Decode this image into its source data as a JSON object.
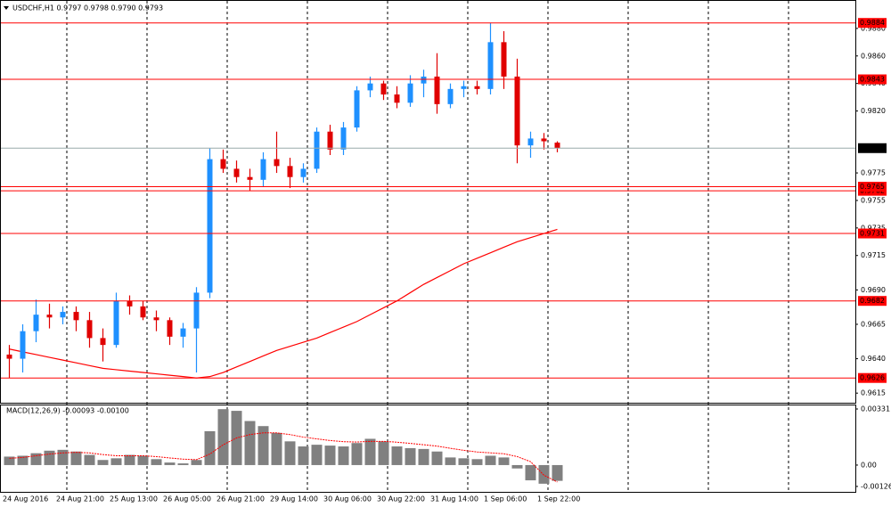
{
  "chart_data": [
    {
      "type": "candlestick",
      "title": "USDCHF,H1 0.9797 0.9798 0.9790 0.9793",
      "categories": [
        "24 Aug 2016",
        null,
        null,
        null,
        "24 Aug 21:00",
        null,
        null,
        null,
        "25 Aug 13:00",
        null,
        null,
        null,
        "26 Aug 05:00",
        null,
        null,
        null,
        "26 Aug 21:00",
        null,
        null,
        null,
        "29 Aug 14:00",
        null,
        null,
        null,
        "30 Aug 06:00",
        null,
        null,
        null,
        "30 Aug 22:00",
        null,
        null,
        null,
        "31 Aug 14:00",
        null,
        null,
        null,
        "1 Sep 06:00",
        null,
        null,
        null,
        "1 Sep 22:00",
        null
      ],
      "open": [
        0.9643,
        0.964,
        0.966,
        0.9672,
        0.967,
        0.9674,
        0.9668,
        0.9655,
        0.965,
        0.9682,
        0.9678,
        0.967,
        0.9668,
        0.9656,
        0.9662,
        0.9688,
        0.9785,
        0.9778,
        0.9772,
        0.977,
        0.9785,
        0.978,
        0.9772,
        0.9778,
        0.9805,
        0.9792,
        0.9808,
        0.9835,
        0.984,
        0.9832,
        0.9826,
        0.984,
        0.9845,
        0.9825,
        0.9836,
        0.9838,
        0.9836,
        0.987,
        0.9845,
        0.9795,
        0.98,
        0.9797
      ],
      "high": [
        0.965,
        0.9665,
        0.9683,
        0.968,
        0.9678,
        0.9678,
        0.9674,
        0.9662,
        0.9688,
        0.9686,
        0.9682,
        0.9675,
        0.967,
        0.9666,
        0.9692,
        0.9793,
        0.9792,
        0.9784,
        0.9778,
        0.979,
        0.9805,
        0.9786,
        0.9782,
        0.9808,
        0.981,
        0.9812,
        0.9838,
        0.9845,
        0.9842,
        0.9838,
        0.9846,
        0.985,
        0.9862,
        0.984,
        0.9842,
        0.9842,
        0.9884,
        0.9878,
        0.9858,
        0.9805,
        0.9804,
        0.9798
      ],
      "low": [
        0.9626,
        0.963,
        0.9652,
        0.9662,
        0.9665,
        0.966,
        0.9648,
        0.9638,
        0.9648,
        0.9672,
        0.9668,
        0.966,
        0.965,
        0.9648,
        0.963,
        0.9684,
        0.9775,
        0.9768,
        0.9762,
        0.9765,
        0.9775,
        0.9764,
        0.9768,
        0.9775,
        0.9788,
        0.9788,
        0.9805,
        0.983,
        0.9828,
        0.9822,
        0.9823,
        0.983,
        0.9818,
        0.9822,
        0.983,
        0.9832,
        0.9832,
        0.9836,
        0.9782,
        0.9786,
        0.9792,
        0.979
      ],
      "close": [
        0.964,
        0.966,
        0.9672,
        0.967,
        0.9674,
        0.9668,
        0.9655,
        0.965,
        0.9682,
        0.9678,
        0.967,
        0.9668,
        0.9656,
        0.9662,
        0.9688,
        0.9785,
        0.9778,
        0.9772,
        0.977,
        0.9785,
        0.978,
        0.9772,
        0.9778,
        0.9805,
        0.9792,
        0.9808,
        0.9835,
        0.984,
        0.9832,
        0.9826,
        0.984,
        0.9845,
        0.9825,
        0.9836,
        0.9838,
        0.9836,
        0.987,
        0.9845,
        0.9795,
        0.98,
        0.9798,
        0.9793
      ],
      "up_color": "#1e90ff",
      "down_color": "#e00000",
      "moving_average": {
        "color": "#ff0000",
        "values": [
          0.9647,
          0.9645,
          0.9643,
          0.9641,
          0.9639,
          0.9637,
          0.9635,
          0.9633,
          0.9632,
          0.9631,
          0.963,
          0.9629,
          0.9628,
          0.9627,
          0.9626,
          0.9627,
          0.963,
          0.9634,
          0.9638,
          0.9642,
          0.9646,
          0.9649,
          0.9652,
          0.9655,
          0.9659,
          0.9663,
          0.9667,
          0.9672,
          0.9677,
          0.9682,
          0.9688,
          0.9694,
          0.9699,
          0.9704,
          0.9709,
          0.9713,
          0.9717,
          0.9721,
          0.9725,
          0.9728,
          0.9731,
          0.9734
        ]
      },
      "levels": [
        0.9884,
        0.9843,
        0.9762,
        0.9765,
        0.9731,
        0.9682,
        0.9626
      ],
      "level_color": "#ff0000",
      "current_price": 0.9793,
      "ylim": [
        0.9608,
        0.99
      ],
      "yticks": [
        {
          "value": 0.988,
          "label": "0.9880"
        },
        {
          "value": 0.986,
          "label": "0.9860"
        },
        {
          "value": 0.984,
          "label": "0.9840"
        },
        {
          "value": 0.982,
          "label": "0.9820"
        },
        0.9775,
        0.9755,
        0.9735,
        0.9715,
        {
          "value": 0.969,
          "label": "0.9690"
        },
        0.9665,
        {
          "value": 0.964,
          "label": "0.9640"
        },
        0.9615
      ]
    },
    {
      "type": "macd",
      "title": "MACD(12,26,9) -0.00093 -0.00100",
      "values": [
        0.0005,
        0.00055,
        0.0007,
        0.00085,
        0.0009,
        0.0008,
        0.0006,
        0.0003,
        0.0004,
        0.0006,
        0.00055,
        0.00035,
        0.00015,
        0.0001,
        0.0003,
        0.002,
        0.0033,
        0.0032,
        0.0026,
        0.0023,
        0.0019,
        0.0014,
        0.0011,
        0.0012,
        0.00115,
        0.0011,
        0.0013,
        0.00155,
        0.0014,
        0.0011,
        0.001,
        0.00095,
        0.0008,
        0.00045,
        0.0004,
        0.00035,
        0.00055,
        0.00045,
        -0.0002,
        -0.0009,
        -0.0011,
        -0.00093
      ],
      "signal": [
        0.0004,
        0.00045,
        0.00055,
        0.00065,
        0.00072,
        0.00075,
        0.00072,
        0.00062,
        0.00055,
        0.00055,
        0.00055,
        0.0005,
        0.00042,
        0.00035,
        0.00032,
        0.00065,
        0.0012,
        0.0016,
        0.0018,
        0.0019,
        0.0019,
        0.0018,
        0.00165,
        0.00155,
        0.00145,
        0.00138,
        0.00136,
        0.0014,
        0.0014,
        0.00135,
        0.00128,
        0.0012,
        0.00112,
        0.00099,
        0.00087,
        0.00077,
        0.00072,
        0.00067,
        0.0005,
        0.0002,
        -0.0006,
        -0.001
      ],
      "color": "#808080",
      "signal_color": "#ff0000",
      "ylim": [
        -0.00158,
        0.00352
      ],
      "yticks": [
        0.00331,
        {
          "value": 0,
          "label": "0.00"
        },
        -0.00126
      ]
    }
  ]
}
